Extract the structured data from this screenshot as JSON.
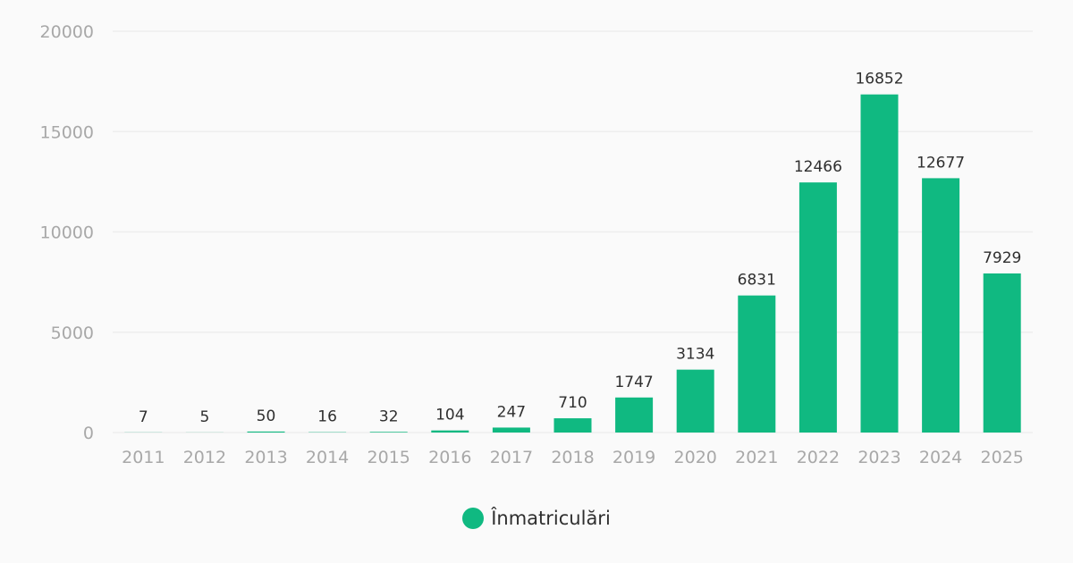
{
  "chart_data": {
    "type": "bar",
    "categories": [
      "2011",
      "2012",
      "2013",
      "2014",
      "2015",
      "2016",
      "2017",
      "2018",
      "2019",
      "2020",
      "2021",
      "2022",
      "2023",
      "2024",
      "2025"
    ],
    "series": [
      {
        "name": "Înmatriculări",
        "values": [
          7,
          5,
          50,
          16,
          32,
          104,
          247,
          710,
          1747,
          3134,
          6831,
          12466,
          16852,
          12677,
          7929
        ],
        "color": "#10b981"
      }
    ],
    "title": "",
    "xlabel": "",
    "ylabel": "",
    "ylim": [
      0,
      20000
    ],
    "yticks": [
      0,
      5000,
      10000,
      15000,
      20000
    ],
    "grid": true,
    "legend_position": "bottom-center",
    "data_labels": true
  },
  "colors": {
    "background": "#fafafa",
    "bar": "#10b981",
    "grid": "#eeeeee",
    "tick_text": "#a8a8a8",
    "label_text": "#2f2f2f"
  }
}
